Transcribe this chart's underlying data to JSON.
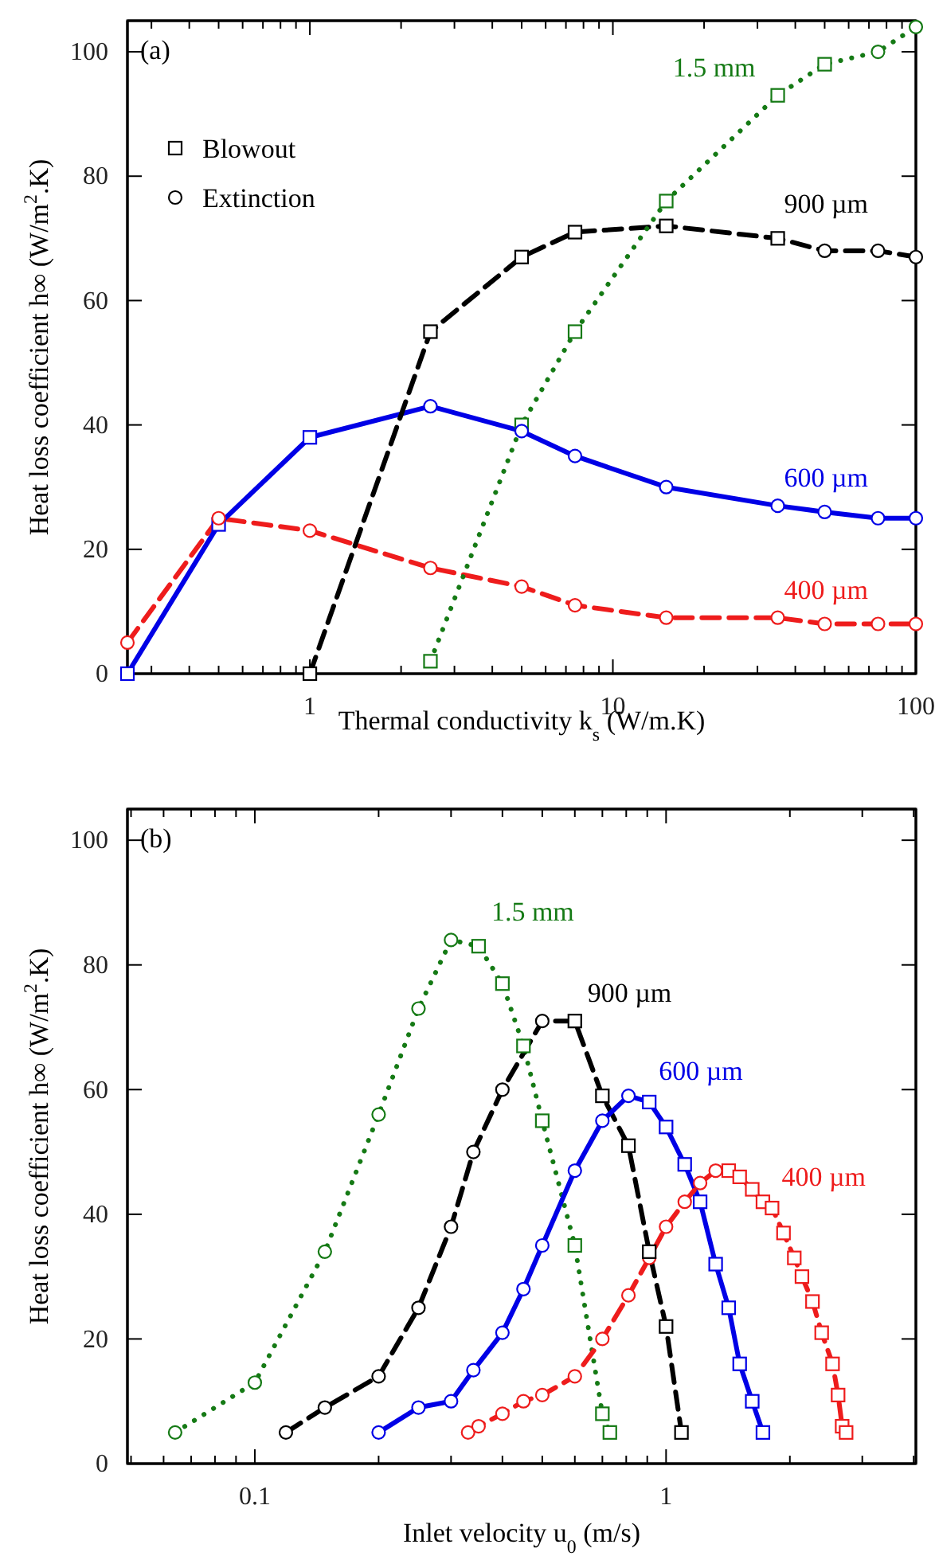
{
  "chart_data": [
    {
      "type": "line",
      "title": "(a)",
      "xlabel": "Thermal conductivity k$_{s}$ (W/m.K)",
      "ylabel": "Heat loss coefficient  h∞ (W/m$^{2}$.K)",
      "log": "x",
      "xlim": [
        0.25,
        100
      ],
      "xticks": [
        {
          "value": 0.3,
          "label": null
        },
        {
          "value": 0.4,
          "label": null
        },
        {
          "value": 0.5,
          "label": null
        },
        {
          "value": 0.6,
          "label": null
        },
        {
          "value": 0.7,
          "label": null
        },
        {
          "value": 0.8,
          "label": null
        },
        {
          "value": 0.9,
          "label": null
        },
        1,
        {
          "value": 2,
          "label": null
        },
        {
          "value": 3,
          "label": null
        },
        {
          "value": 4,
          "label": null
        },
        {
          "value": 5,
          "label": null
        },
        {
          "value": 6,
          "label": null
        },
        {
          "value": 7,
          "label": null
        },
        {
          "value": 8,
          "label": null
        },
        {
          "value": 9,
          "label": null
        },
        10,
        {
          "value": 20,
          "label": null
        },
        {
          "value": 30,
          "label": null
        },
        {
          "value": 40,
          "label": null
        },
        {
          "value": 50,
          "label": null
        },
        {
          "value": 60,
          "label": null
        },
        {
          "value": 70,
          "label": null
        },
        {
          "value": 80,
          "label": null
        },
        {
          "value": 90,
          "label": null
        },
        100
      ],
      "ylim": [
        0,
        105
      ],
      "yticks": [
        0,
        20,
        40,
        60,
        80,
        100
      ],
      "grid": false,
      "legend": "top left",
      "series": [
        {
          "name": "400 µm",
          "color": "#ee1c1c",
          "line_style": "dashed",
          "marker": "none",
          "x": [
            0.25,
            0.5,
            1,
            2.5,
            5,
            7.5,
            15,
            35,
            50,
            75,
            100
          ],
          "values": [
            5,
            25,
            23,
            17,
            14,
            11,
            9,
            9,
            8,
            8,
            8
          ]
        },
        {
          "name": "600 µm",
          "color": "#0000e6",
          "line_style": "solid",
          "marker": "none",
          "x": [
            0.25,
            0.5,
            1,
            2.5,
            5,
            7.5,
            15,
            35,
            50,
            75,
            100
          ],
          "values": [
            0,
            24,
            38,
            43,
            39,
            35,
            30,
            27,
            26,
            25,
            25
          ]
        },
        {
          "name": "900 µm",
          "color": "#000000",
          "line_style": "dashed",
          "marker": "none",
          "x": [
            1,
            2.5,
            5,
            7.5,
            15,
            35,
            50,
            75,
            100
          ],
          "values": [
            0,
            55,
            67,
            71,
            72,
            70,
            68,
            68,
            67
          ]
        },
        {
          "name": "1.5 mm",
          "color": "#157a15",
          "line_style": "dotted",
          "marker": "none",
          "x": [
            2.5,
            5,
            7.5,
            15,
            35,
            50,
            75,
            100
          ],
          "values": [
            2,
            40,
            55,
            76,
            93,
            98,
            100,
            104
          ]
        },
        {
          "name": "Blowout",
          "type": "scatter",
          "marker": "square",
          "color": "#000000",
          "x": [
            1,
            2.5,
            5,
            7.5,
            15,
            35
          ],
          "values": [
            0,
            55,
            67,
            71,
            72,
            70
          ]
        },
        {
          "name": "Extinction",
          "type": "scatter",
          "marker": "circle",
          "color": "#000000",
          "x": [
            50,
            75,
            100
          ],
          "values": [
            68,
            68,
            67
          ]
        },
        {
          "type": "scatter",
          "marker": "square",
          "color": "#0000e6",
          "x": [
            0.25,
            0.5,
            1
          ],
          "values": [
            0,
            24,
            38
          ]
        },
        {
          "type": "scatter",
          "marker": "square",
          "color": "#157a15",
          "x": [
            2.5,
            5,
            7.5,
            15,
            35,
            50
          ],
          "values": [
            2,
            40,
            55,
            76,
            93,
            98
          ]
        },
        {
          "type": "scatter",
          "marker": "circle",
          "color": "#ee1c1c",
          "x": [
            0.25,
            0.5,
            1,
            2.5,
            5,
            7.5,
            15,
            35,
            50,
            75,
            100
          ],
          "values": [
            5,
            25,
            23,
            17,
            14,
            11,
            9,
            9,
            8,
            8,
            8
          ]
        },
        {
          "type": "scatter",
          "marker": "circle",
          "color": "#0000e6",
          "x": [
            2.5,
            5,
            7.5,
            15,
            35,
            50,
            75,
            100
          ],
          "values": [
            43,
            39,
            35,
            30,
            27,
            26,
            25,
            25
          ]
        },
        {
          "type": "scatter",
          "marker": "circle",
          "color": "#157a15",
          "x": [
            75,
            100
          ],
          "values": [
            100,
            104
          ]
        }
      ]
    },
    {
      "type": "line",
      "title": "(b)",
      "xlabel": "Inlet velocity u$_{0}$ (m/s)",
      "ylabel": "Heat loss coefficient  h∞ (W/m$^{2}$.K)",
      "log": "x",
      "xlim": [
        0.049,
        4.05
      ],
      "xticks": [
        {
          "value": 0.05,
          "label": null
        },
        {
          "value": 0.06,
          "label": null
        },
        {
          "value": 0.07,
          "label": null
        },
        {
          "value": 0.08,
          "label": null
        },
        {
          "value": 0.09,
          "label": null
        },
        0.1,
        {
          "value": 0.2,
          "label": null
        },
        {
          "value": 0.3,
          "label": null
        },
        {
          "value": 0.4,
          "label": null
        },
        {
          "value": 0.5,
          "label": null
        },
        {
          "value": 0.6,
          "label": null
        },
        {
          "value": 0.7,
          "label": null
        },
        {
          "value": 0.8,
          "label": null
        },
        {
          "value": 0.9,
          "label": null
        },
        1,
        {
          "value": 2,
          "label": null
        },
        {
          "value": 3,
          "label": null
        },
        {
          "value": 4,
          "label": null
        }
      ],
      "ylim": [
        0,
        105
      ],
      "yticks": [
        0,
        20,
        40,
        60,
        80,
        100
      ],
      "grid": false,
      "series": [
        {
          "name": "1.5 mm",
          "color": "#157a15",
          "line_style": "dotted",
          "marker": "none",
          "x": [
            0.064,
            0.1,
            0.148,
            0.2,
            0.25,
            0.3,
            0.35,
            0.4,
            0.45,
            0.5,
            0.6,
            0.7,
            0.73
          ],
          "values": [
            5,
            13,
            34,
            56,
            73,
            84,
            83,
            77,
            67,
            55,
            35,
            8,
            5
          ]
        },
        {
          "name": "900 µm",
          "color": "#000000",
          "line_style": "dashed",
          "marker": "none",
          "x": [
            0.119,
            0.148,
            0.2,
            0.25,
            0.3,
            0.34,
            0.4,
            0.5,
            0.6,
            0.7,
            0.81,
            0.91,
            1,
            1.09
          ],
          "values": [
            5,
            9,
            14,
            25,
            38,
            50,
            60,
            71,
            71,
            59,
            51,
            34,
            22,
            5
          ]
        },
        {
          "name": "600 µm",
          "color": "#0000e6",
          "line_style": "solid",
          "marker": "none",
          "x": [
            0.2,
            0.25,
            0.3,
            0.34,
            0.4,
            0.45,
            0.5,
            0.6,
            0.7,
            0.81,
            0.91,
            1,
            1.11,
            1.21,
            1.32,
            1.42,
            1.51,
            1.62,
            1.72
          ],
          "values": [
            5,
            9,
            10,
            15,
            21,
            28,
            35,
            47,
            55,
            59,
            58,
            54,
            48,
            42,
            32,
            25,
            16,
            10,
            5
          ]
        },
        {
          "name": "400 µm",
          "color": "#ee1c1c",
          "line_style": "dashed",
          "marker": "none",
          "x": [
            0.33,
            0.35,
            0.4,
            0.45,
            0.5,
            0.6,
            0.7,
            0.81,
            0.91,
            1,
            1.11,
            1.21,
            1.32,
            1.42,
            1.51,
            1.62,
            1.72,
            1.81,
            1.93,
            2.05,
            2.14,
            2.27,
            2.39,
            2.54,
            2.62,
            2.68,
            2.74
          ],
          "values": [
            5,
            6,
            8,
            10,
            11,
            14,
            20,
            27,
            33,
            38,
            42,
            45,
            47,
            47,
            46,
            44,
            42,
            41,
            37,
            33,
            30,
            26,
            21,
            16,
            11,
            6,
            5
          ]
        },
        {
          "type": "scatter",
          "marker": "circle",
          "color": "#157a15",
          "x": [
            0.064,
            0.1,
            0.148,
            0.2,
            0.25,
            0.3
          ],
          "values": [
            5,
            13,
            34,
            56,
            73,
            84
          ]
        },
        {
          "type": "scatter",
          "marker": "circle",
          "color": "#000000",
          "x": [
            0.119,
            0.148,
            0.2,
            0.25,
            0.3,
            0.34,
            0.4,
            0.5
          ],
          "values": [
            5,
            9,
            14,
            25,
            38,
            50,
            60,
            71
          ]
        },
        {
          "type": "scatter",
          "marker": "circle",
          "color": "#0000e6",
          "x": [
            0.2,
            0.25,
            0.3,
            0.34,
            0.4,
            0.45,
            0.5,
            0.6,
            0.7,
            0.81
          ],
          "values": [
            5,
            9,
            10,
            15,
            21,
            28,
            35,
            47,
            55,
            59
          ]
        },
        {
          "type": "scatter",
          "marker": "circle",
          "color": "#ee1c1c",
          "x": [
            0.33,
            0.35,
            0.4,
            0.45,
            0.5,
            0.6,
            0.7,
            0.81,
            0.91,
            1,
            1.11,
            1.21,
            1.32
          ],
          "values": [
            5,
            6,
            8,
            10,
            11,
            14,
            20,
            27,
            33,
            38,
            42,
            45,
            47
          ]
        },
        {
          "type": "scatter",
          "marker": "square",
          "color": "#157a15",
          "x": [
            0.35,
            0.4,
            0.45,
            0.5,
            0.6,
            0.7,
            0.73
          ],
          "values": [
            83,
            77,
            67,
            55,
            35,
            8,
            5
          ]
        },
        {
          "type": "scatter",
          "marker": "square",
          "color": "#000000",
          "x": [
            0.6,
            0.7,
            0.81,
            0.91,
            1,
            1.09
          ],
          "values": [
            71,
            59,
            51,
            34,
            22,
            5
          ]
        },
        {
          "type": "scatter",
          "marker": "square",
          "color": "#0000e6",
          "x": [
            0.91,
            1,
            1.11,
            1.21,
            1.32,
            1.42,
            1.51,
            1.62,
            1.72
          ],
          "values": [
            58,
            54,
            48,
            42,
            32,
            25,
            16,
            10,
            5
          ]
        },
        {
          "type": "scatter",
          "marker": "square",
          "color": "#ee1c1c",
          "x": [
            1.42,
            1.51,
            1.62,
            1.72,
            1.81,
            1.93,
            2.05,
            2.14,
            2.27,
            2.39,
            2.54,
            2.62,
            2.68,
            2.74
          ],
          "values": [
            47,
            46,
            44,
            42,
            41,
            37,
            33,
            30,
            26,
            21,
            16,
            11,
            6,
            5
          ]
        }
      ]
    }
  ]
}
